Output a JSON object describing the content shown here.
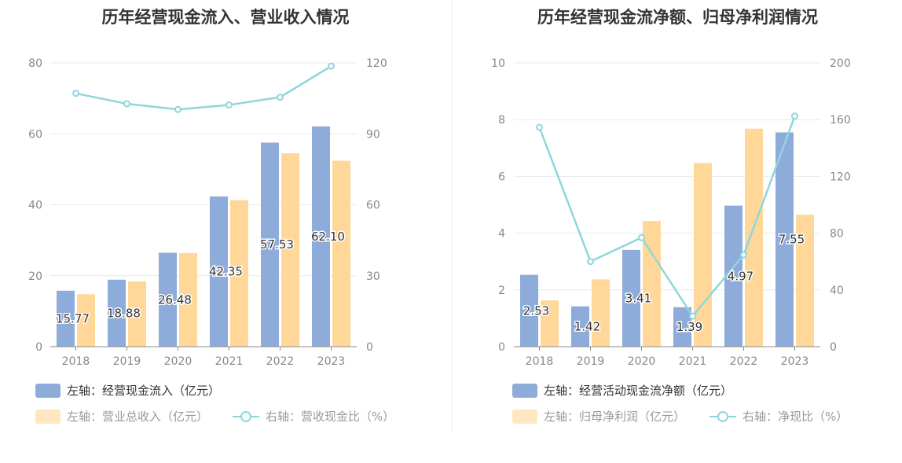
{
  "colors": {
    "bar_blue": "#8eacd9",
    "bar_yellow": "#ffd899",
    "line": "#8fd6dc",
    "grid": "#e6e9f2",
    "axis_text": "#888888"
  },
  "chart_data": [
    {
      "id": "left",
      "type": "bar",
      "title": "历年经营现金流入、营业收入情况",
      "categories": [
        "2018",
        "2019",
        "2020",
        "2021",
        "2022",
        "2023"
      ],
      "left_axis": {
        "ylim": [
          0,
          80
        ],
        "ticks": [
          "0",
          "20",
          "40",
          "60",
          "80"
        ]
      },
      "right_axis": {
        "ylim": [
          0,
          120
        ],
        "ticks": [
          "0",
          "30",
          "60",
          "90",
          "120"
        ]
      },
      "series": [
        {
          "name": "左轴：经营现金流入（亿元）",
          "axis": "left",
          "kind": "bar",
          "color": "#8eacd9",
          "values": [
            15.77,
            18.88,
            26.48,
            42.35,
            57.53,
            62.1
          ],
          "labels": [
            "15.77",
            "18.88",
            "26.48",
            "42.35",
            "57.53",
            "62.10"
          ]
        },
        {
          "name": "左轴：营业总收入（亿元）",
          "axis": "left",
          "kind": "bar",
          "color": "#ffd899",
          "values": [
            14.8,
            18.4,
            26.4,
            41.3,
            54.5,
            52.4
          ]
        },
        {
          "name": "右轴：营收现金比（%）",
          "axis": "right",
          "kind": "line",
          "color": "#8fd6dc",
          "values": [
            107.1,
            102.7,
            100.3,
            102.2,
            105.5,
            118.6
          ]
        }
      ],
      "legend": {
        "row1": [
          "左轴：经营现金流入（亿元）"
        ],
        "row2": [
          "左轴：营业总收入（亿元）",
          "右轴：营收现金比（%）"
        ]
      }
    },
    {
      "id": "right",
      "type": "bar",
      "title": "历年经营现金流净额、归母净利润情况",
      "categories": [
        "2018",
        "2019",
        "2020",
        "2021",
        "2022",
        "2023"
      ],
      "left_axis": {
        "ylim": [
          0,
          10
        ],
        "ticks": [
          "0",
          "2",
          "4",
          "6",
          "8",
          "10"
        ]
      },
      "right_axis": {
        "ylim": [
          0,
          200
        ],
        "ticks": [
          "0",
          "40",
          "80",
          "120",
          "160",
          "200"
        ]
      },
      "series": [
        {
          "name": "左轴：经营活动现金流净额（亿元）",
          "axis": "left",
          "kind": "bar",
          "color": "#8eacd9",
          "values": [
            2.53,
            1.42,
            3.41,
            1.39,
            4.97,
            7.55
          ],
          "labels": [
            "2.53",
            "1.42",
            "3.41",
            "1.39",
            "4.97",
            "7.55"
          ]
        },
        {
          "name": "左轴：归母净利润（亿元）",
          "axis": "left",
          "kind": "bar",
          "color": "#ffd899",
          "values": [
            1.63,
            2.37,
            4.43,
            6.47,
            7.68,
            4.65
          ]
        },
        {
          "name": "右轴：净现比（%）",
          "axis": "right",
          "kind": "line",
          "color": "#8fd6dc",
          "values": [
            154.6,
            60.0,
            76.9,
            21.5,
            64.7,
            162.5
          ]
        }
      ],
      "legend": {
        "row1": [
          "左轴：经营活动现金流净额（亿元）"
        ],
        "row2": [
          "左轴：归母净利润（亿元）",
          "右轴：净现比（%）"
        ]
      }
    }
  ]
}
